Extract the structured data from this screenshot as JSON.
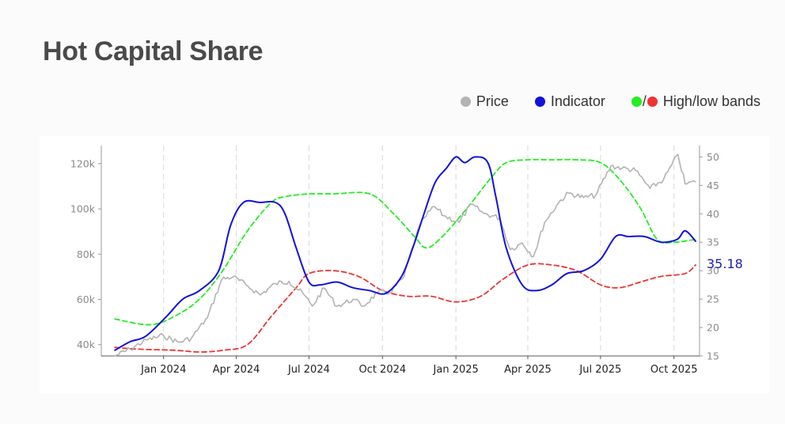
{
  "title": "Hot Capital Share",
  "legend": {
    "price": {
      "label": "Price",
      "color": "#b3b3b3"
    },
    "indicator": {
      "label": "Indicator",
      "color": "#1111dd"
    },
    "bands": {
      "label": "High/low bands",
      "separator": "/",
      "high_color": "#22ee22",
      "low_color": "#ee3333"
    }
  },
  "chart_data": {
    "type": "line",
    "x_ticks": [
      "Jan 2024",
      "Apr 2024",
      "Jul 2024",
      "Oct 2024",
      "Jan 2025",
      "Apr 2025",
      "Jul 2025",
      "Oct 2025"
    ],
    "y_left": {
      "ticks": [
        "40k",
        "60k",
        "80k",
        "100k",
        "120k"
      ],
      "values": [
        40000,
        60000,
        80000,
        100000,
        120000
      ],
      "range": [
        35000,
        128000
      ]
    },
    "y_right": {
      "ticks": [
        "15",
        "20",
        "25",
        "30",
        "35",
        "40",
        "45",
        "50"
      ],
      "values": [
        15,
        20,
        25,
        30,
        35,
        40,
        45,
        50
      ],
      "range": [
        15,
        52
      ]
    },
    "last_value_label": "35.18",
    "series": [
      {
        "name": "Price",
        "axis": "left",
        "color": "#b3b3b3",
        "dashed": false,
        "x": [
          "2023-11-01",
          "2023-11-20",
          "2023-12-10",
          "2024-01-01",
          "2024-01-20",
          "2024-02-05",
          "2024-02-25",
          "2024-03-14",
          "2024-03-28",
          "2024-04-15",
          "2024-05-01",
          "2024-05-20",
          "2024-06-06",
          "2024-06-25",
          "2024-07-05",
          "2024-07-20",
          "2024-08-05",
          "2024-08-25",
          "2024-09-07",
          "2024-09-25",
          "2024-10-10",
          "2024-10-28",
          "2024-11-12",
          "2024-11-22",
          "2024-12-05",
          "2024-12-17",
          "2025-01-05",
          "2025-01-20",
          "2025-02-05",
          "2025-02-25",
          "2025-03-10",
          "2025-03-25",
          "2025-04-08",
          "2025-04-22",
          "2025-05-10",
          "2025-05-22",
          "2025-06-10",
          "2025-06-25",
          "2025-07-14",
          "2025-07-28",
          "2025-08-14",
          "2025-09-01",
          "2025-09-18",
          "2025-10-06",
          "2025-10-15",
          "2025-10-28"
        ],
        "y": [
          35000,
          38000,
          42000,
          44000,
          41000,
          43000,
          52000,
          69000,
          70000,
          66000,
          62000,
          67000,
          68000,
          62000,
          57000,
          65000,
          57000,
          60000,
          57000,
          63000,
          63000,
          70000,
          88000,
          96000,
          101000,
          97000,
          94000,
          102000,
          98000,
          96000,
          82000,
          85000,
          79000,
          94000,
          103000,
          107000,
          105000,
          106000,
          119000,
          118000,
          117000,
          109000,
          113000,
          124000,
          111000,
          112000
        ]
      },
      {
        "name": "Indicator",
        "axis": "right",
        "color": "#1111dd",
        "dashed": false,
        "x": [
          "2023-11-01",
          "2023-11-20",
          "2023-12-10",
          "2024-01-05",
          "2024-01-25",
          "2024-02-15",
          "2024-03-10",
          "2024-03-25",
          "2024-04-10",
          "2024-05-01",
          "2024-05-20",
          "2024-06-01",
          "2024-06-15",
          "2024-07-01",
          "2024-07-15",
          "2024-08-05",
          "2024-08-25",
          "2024-09-15",
          "2024-10-05",
          "2024-10-25",
          "2024-11-08",
          "2024-11-22",
          "2024-12-06",
          "2024-12-20",
          "2025-01-01",
          "2025-01-12",
          "2025-01-25",
          "2025-02-10",
          "2025-02-20",
          "2025-03-05",
          "2025-03-25",
          "2025-04-12",
          "2025-05-01",
          "2025-05-20",
          "2025-06-10",
          "2025-07-01",
          "2025-07-20",
          "2025-08-05",
          "2025-08-25",
          "2025-09-15",
          "2025-10-05",
          "2025-10-15",
          "2025-10-28"
        ],
        "y": [
          16,
          17.5,
          18.5,
          22,
          25,
          26.5,
          30,
          38,
          42,
          42,
          42,
          40,
          34,
          28,
          27.5,
          28,
          27,
          26.5,
          26,
          29,
          34,
          40,
          45.5,
          48,
          50,
          49,
          50,
          49,
          43,
          34,
          27.5,
          26.5,
          27.5,
          29.5,
          30,
          32,
          36,
          36,
          36,
          35,
          35.5,
          37,
          35.18
        ]
      },
      {
        "name": "High band",
        "axis": "right",
        "color": "#22ee22",
        "dashed": true,
        "x": [
          "2023-11-01",
          "2023-12-15",
          "2024-01-15",
          "2024-02-15",
          "2024-03-15",
          "2024-04-15",
          "2024-05-15",
          "2024-06-01",
          "2024-07-01",
          "2024-08-01",
          "2024-09-15",
          "2024-10-15",
          "2024-11-10",
          "2024-11-25",
          "2024-12-15",
          "2025-01-15",
          "2025-02-15",
          "2025-03-05",
          "2025-04-01",
          "2025-05-01",
          "2025-06-01",
          "2025-07-01",
          "2025-07-25",
          "2025-08-20",
          "2025-09-10",
          "2025-10-01",
          "2025-10-28"
        ],
        "y": [
          21.5,
          20.5,
          22,
          25,
          30,
          37,
          42,
          43,
          43.5,
          43.5,
          43.5,
          40,
          36,
          34,
          36,
          41,
          46.5,
          49,
          49.5,
          49.5,
          49.5,
          49,
          46,
          41,
          35.5,
          35,
          35.5
        ]
      },
      {
        "name": "Low band",
        "axis": "right",
        "color": "#ee3333",
        "dashed": true,
        "x": [
          "2023-11-01",
          "2023-12-01",
          "2024-01-15",
          "2024-02-15",
          "2024-03-15",
          "2024-04-15",
          "2024-05-15",
          "2024-06-15",
          "2024-07-01",
          "2024-08-01",
          "2024-09-01",
          "2024-10-01",
          "2024-11-01",
          "2024-12-01",
          "2025-01-01",
          "2025-02-01",
          "2025-03-01",
          "2025-04-01",
          "2025-05-01",
          "2025-06-01",
          "2025-07-01",
          "2025-07-25",
          "2025-08-20",
          "2025-09-15",
          "2025-10-15",
          "2025-10-28"
        ],
        "y": [
          16.5,
          16.2,
          16,
          15.7,
          16,
          17,
          22,
          27,
          29.5,
          30,
          29,
          26.5,
          25.5,
          25.5,
          24.5,
          25.5,
          28.5,
          31,
          31,
          30,
          27.5,
          27,
          28,
          29,
          29.5,
          31
        ]
      }
    ]
  }
}
